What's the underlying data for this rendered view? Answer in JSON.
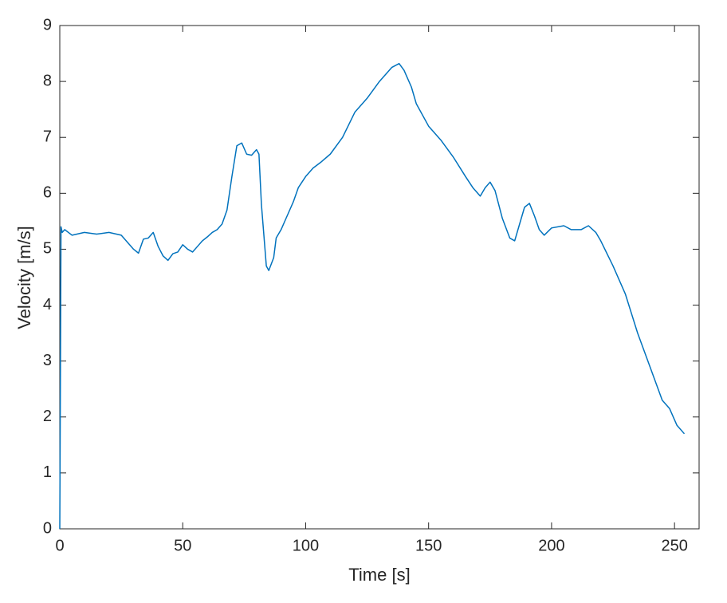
{
  "chart_data": {
    "type": "line",
    "x_label": "Time [s]",
    "y_label": "Velocity [m/s]",
    "color": "#0072bd",
    "x": [
      0,
      0.5,
      1,
      2,
      5,
      10,
      15,
      20,
      25,
      30,
      32,
      34,
      36,
      38,
      40,
      42,
      44,
      46,
      48,
      50,
      52,
      54,
      56,
      58,
      60,
      62,
      64,
      66,
      68,
      70,
      72,
      74,
      76,
      78,
      80,
      81,
      82,
      84,
      85,
      87,
      88,
      90,
      92,
      95,
      97,
      100,
      103,
      106,
      110,
      115,
      120,
      125,
      130,
      135,
      138,
      140,
      143,
      145,
      150,
      155,
      160,
      165,
      168,
      171,
      173,
      175,
      177,
      180,
      183,
      185,
      187,
      189,
      191,
      193,
      195,
      197,
      200,
      205,
      208,
      212,
      215,
      218,
      220,
      225,
      230,
      235,
      240,
      245,
      248,
      251,
      254
    ],
    "values": [
      0,
      5.4,
      5.3,
      5.35,
      5.25,
      5.3,
      5.27,
      5.3,
      5.25,
      5.0,
      4.93,
      5.18,
      5.2,
      5.3,
      5.05,
      4.88,
      4.8,
      4.92,
      4.95,
      5.08,
      5.0,
      4.95,
      5.05,
      5.15,
      5.22,
      5.3,
      5.35,
      5.45,
      5.7,
      6.3,
      6.85,
      6.9,
      6.7,
      6.68,
      6.78,
      6.7,
      5.8,
      4.7,
      4.62,
      4.85,
      5.2,
      5.35,
      5.55,
      5.85,
      6.1,
      6.3,
      6.45,
      6.55,
      6.7,
      7.0,
      7.45,
      7.7,
      8.0,
      8.25,
      8.32,
      8.2,
      7.9,
      7.6,
      7.2,
      6.95,
      6.65,
      6.3,
      6.1,
      5.95,
      6.1,
      6.2,
      6.05,
      5.55,
      5.2,
      5.15,
      5.45,
      5.75,
      5.82,
      5.6,
      5.35,
      5.25,
      5.38,
      5.42,
      5.35,
      5.35,
      5.42,
      5.3,
      5.15,
      4.7,
      4.2,
      3.5,
      2.9,
      2.3,
      2.15,
      1.85,
      1.7
    ],
    "xlim": [
      0,
      260
    ],
    "xticks": [
      0,
      50,
      100,
      150,
      200,
      250
    ],
    "ylim": [
      0,
      9
    ],
    "yticks": [
      0,
      1,
      2,
      3,
      4,
      5,
      6,
      7,
      8,
      9
    ]
  }
}
